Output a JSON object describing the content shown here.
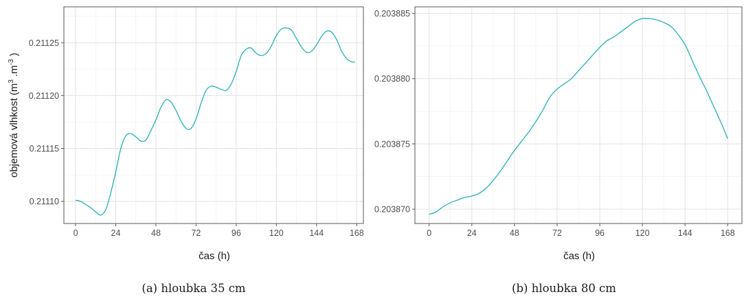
{
  "chart_data": [
    {
      "type": "line",
      "caption": "(a) hloubka 35 cm",
      "xlabel": "čas (h)",
      "ylabel_parts": [
        "objemová vlhkost (m",
        "3",
        " .m",
        "-3",
        " )"
      ],
      "xlim": [
        -7,
        172
      ],
      "ylim": [
        0.211079,
        0.211284
      ],
      "xticks": [
        0,
        24,
        48,
        72,
        96,
        120,
        144,
        168
      ],
      "xtick_labels": [
        "0",
        "24",
        "48",
        "72",
        "96",
        "120",
        "144",
        "168"
      ],
      "yticks": [
        0.2111,
        0.21115,
        0.2112,
        0.21125
      ],
      "ytick_labels": [
        "0.21110",
        "0.21115",
        "0.21120",
        "0.21125"
      ],
      "grid": true,
      "color": "#27aeb9",
      "series": [
        {
          "x": [
            0,
            3,
            6,
            9,
            12,
            15,
            18,
            21,
            24,
            27,
            30,
            33,
            36,
            39,
            42,
            45,
            48,
            51,
            54,
            57,
            60,
            63,
            66,
            69,
            72,
            75,
            78,
            81,
            84,
            87,
            90,
            93,
            96,
            99,
            102,
            105,
            108,
            111,
            114,
            117,
            120,
            123,
            126,
            129,
            132,
            135,
            138,
            141,
            144,
            147,
            150,
            153,
            156,
            159,
            162,
            165,
            167
          ],
          "y": [
            0.211101,
            0.2111,
            0.211097,
            0.211094,
            0.21109,
            0.211087,
            0.211092,
            0.211108,
            0.211128,
            0.21115,
            0.211162,
            0.211164,
            0.211161,
            0.211157,
            0.211158,
            0.211167,
            0.211177,
            0.211189,
            0.211196,
            0.211194,
            0.211186,
            0.211176,
            0.211169,
            0.211169,
            0.211178,
            0.211193,
            0.211205,
            0.211209,
            0.211208,
            0.211206,
            0.211205,
            0.211211,
            0.211223,
            0.211238,
            0.211244,
            0.211245,
            0.21124,
            0.211238,
            0.21124,
            0.211247,
            0.211257,
            0.211263,
            0.211264,
            0.211262,
            0.211254,
            0.211246,
            0.211241,
            0.211242,
            0.211248,
            0.211256,
            0.211261,
            0.21126,
            0.211253,
            0.211242,
            0.211235,
            0.211232,
            0.211232
          ]
        }
      ]
    },
    {
      "type": "line",
      "caption": "(b) hloubka 80 cm",
      "xlabel": "čas (h)",
      "xlim": [
        -8,
        176
      ],
      "ylim": [
        0.2038689,
        0.2038855
      ],
      "xticks": [
        0,
        24,
        48,
        72,
        96,
        120,
        144,
        168
      ],
      "xtick_labels": [
        "0",
        "24",
        "48",
        "72",
        "96",
        "120",
        "144",
        "168"
      ],
      "yticks": [
        0.20387,
        0.203875,
        0.20388,
        0.203885
      ],
      "ytick_labels": [
        "0.203870",
        "0.203875",
        "0.203880",
        "0.203885"
      ],
      "grid": true,
      "color": "#27aeb9",
      "series": [
        {
          "x": [
            0,
            4,
            8,
            12,
            16,
            20,
            24,
            28,
            32,
            36,
            40,
            44,
            48,
            52,
            56,
            60,
            64,
            68,
            72,
            76,
            80,
            84,
            88,
            92,
            96,
            100,
            104,
            108,
            112,
            116,
            120,
            124,
            128,
            132,
            136,
            140,
            144,
            148,
            152,
            156,
            160,
            164,
            168
          ],
          "y": [
            0.2038696,
            0.2038698,
            0.2038702,
            0.2038705,
            0.2038707,
            0.2038709,
            0.203871,
            0.2038712,
            0.2038716,
            0.2038722,
            0.2038729,
            0.2038737,
            0.2038745,
            0.2038752,
            0.2038759,
            0.2038767,
            0.2038776,
            0.2038786,
            0.2038792,
            0.2038796,
            0.20388,
            0.2038806,
            0.2038812,
            0.2038818,
            0.2038824,
            0.2038829,
            0.2038832,
            0.2038836,
            0.203884,
            0.2038844,
            0.2038846,
            0.2038846,
            0.2038845,
            0.2038843,
            0.203884,
            0.2038834,
            0.2038826,
            0.2038814,
            0.2038802,
            0.2038791,
            0.2038779,
            0.2038767,
            0.2038754
          ]
        }
      ]
    }
  ]
}
